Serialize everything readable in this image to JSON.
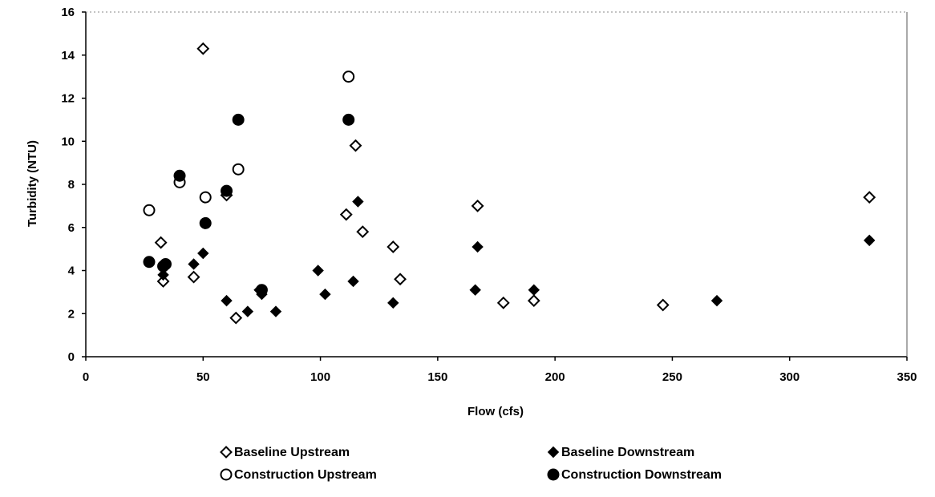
{
  "chart_data": {
    "type": "scatter",
    "title": "",
    "xlabel": "Flow (cfs)",
    "ylabel": "Turbidity (NTU)",
    "xlim": [
      0,
      350
    ],
    "ylim": [
      0,
      16
    ],
    "xticks": [
      0,
      50,
      100,
      150,
      200,
      250,
      300,
      350
    ],
    "yticks": [
      0,
      2,
      4,
      6,
      8,
      10,
      12,
      14,
      16
    ],
    "grid": false,
    "legend_position": "bottom",
    "series": [
      {
        "name": "Baseline Upstream",
        "marker": "diamond-open",
        "points": [
          [
            33,
            3.5
          ],
          [
            32,
            5.3
          ],
          [
            46,
            3.7
          ],
          [
            50,
            14.3
          ],
          [
            60,
            7.5
          ],
          [
            64,
            1.8
          ],
          [
            111,
            6.6
          ],
          [
            115,
            9.8
          ],
          [
            118,
            5.8
          ],
          [
            131,
            5.1
          ],
          [
            134,
            3.6
          ],
          [
            167,
            7.0
          ],
          [
            178,
            2.5
          ],
          [
            191,
            2.6
          ],
          [
            246,
            2.4
          ],
          [
            334,
            7.4
          ]
        ]
      },
      {
        "name": "Baseline Downstream",
        "marker": "diamond-filled",
        "points": [
          [
            33,
            3.8
          ],
          [
            46,
            4.3
          ],
          [
            50,
            4.8
          ],
          [
            60,
            2.6
          ],
          [
            69,
            2.1
          ],
          [
            74,
            3.1
          ],
          [
            75,
            2.9
          ],
          [
            81,
            2.1
          ],
          [
            99,
            4.0
          ],
          [
            102,
            2.9
          ],
          [
            114,
            3.5
          ],
          [
            116,
            7.2
          ],
          [
            131,
            2.5
          ],
          [
            166,
            3.1
          ],
          [
            167,
            5.1
          ],
          [
            191,
            3.1
          ],
          [
            269,
            2.6
          ],
          [
            334,
            5.4
          ]
        ]
      },
      {
        "name": "Construction Upstream",
        "marker": "circle-open",
        "points": [
          [
            27,
            6.8
          ],
          [
            40,
            8.1
          ],
          [
            51,
            7.4
          ],
          [
            65,
            8.7
          ],
          [
            112,
            13.0
          ]
        ]
      },
      {
        "name": "Construction Downstream",
        "marker": "circle-filled",
        "points": [
          [
            27,
            4.4
          ],
          [
            33,
            4.2
          ],
          [
            34,
            4.3
          ],
          [
            40,
            8.4
          ],
          [
            51,
            6.2
          ],
          [
            60,
            7.7
          ],
          [
            65,
            11.0
          ],
          [
            75,
            3.1
          ],
          [
            112,
            11.0
          ]
        ]
      }
    ]
  }
}
